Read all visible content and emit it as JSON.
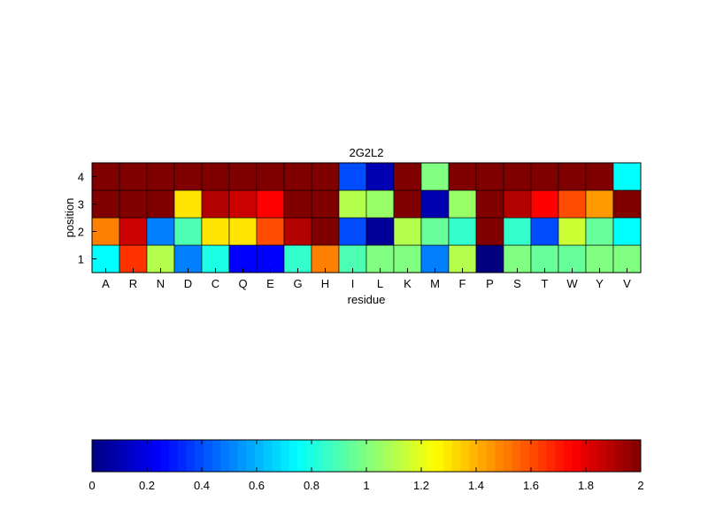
{
  "chart_data": {
    "type": "heatmap",
    "title": "2G2L2",
    "xlabel": "residue",
    "ylabel": "position",
    "x_categories": [
      "A",
      "R",
      "N",
      "D",
      "C",
      "Q",
      "E",
      "G",
      "H",
      "I",
      "L",
      "K",
      "M",
      "F",
      "P",
      "S",
      "T",
      "W",
      "Y",
      "V"
    ],
    "y_categories": [
      "1",
      "2",
      "3",
      "4"
    ],
    "values": [
      [
        0.75,
        1.65,
        1.1,
        0.5,
        0.8,
        0.25,
        0.25,
        0.85,
        1.5,
        0.9,
        1.0,
        1.0,
        0.5,
        1.1,
        0.0,
        1.0,
        0.95,
        0.95,
        1.0,
        1.0
      ],
      [
        1.5,
        1.85,
        0.5,
        0.9,
        1.3,
        1.3,
        1.6,
        1.9,
        2.0,
        0.4,
        0.05,
        1.1,
        0.95,
        0.85,
        2.0,
        0.85,
        0.4,
        1.15,
        0.95,
        0.75
      ],
      [
        2.0,
        2.0,
        2.0,
        1.3,
        1.9,
        1.85,
        1.75,
        2.0,
        2.0,
        1.1,
        1.05,
        2.0,
        0.1,
        1.05,
        2.0,
        1.9,
        1.75,
        1.6,
        1.45,
        2.0
      ],
      [
        2.0,
        2.0,
        2.0,
        2.0,
        2.0,
        2.0,
        2.0,
        2.0,
        2.0,
        0.4,
        0.1,
        2.0,
        1.0,
        2.0,
        2.0,
        2.0,
        2.0,
        2.0,
        2.0,
        0.75
      ]
    ],
    "colormap": "jet",
    "clim": [
      0,
      2
    ],
    "grid": true,
    "colorbar": {
      "orientation": "horizontal",
      "position": "bottom",
      "ticks": [
        "0",
        "0.2",
        "0.4",
        "0.6",
        "0.8",
        "1",
        "1.2",
        "1.4",
        "1.6",
        "1.8",
        "2"
      ]
    }
  }
}
